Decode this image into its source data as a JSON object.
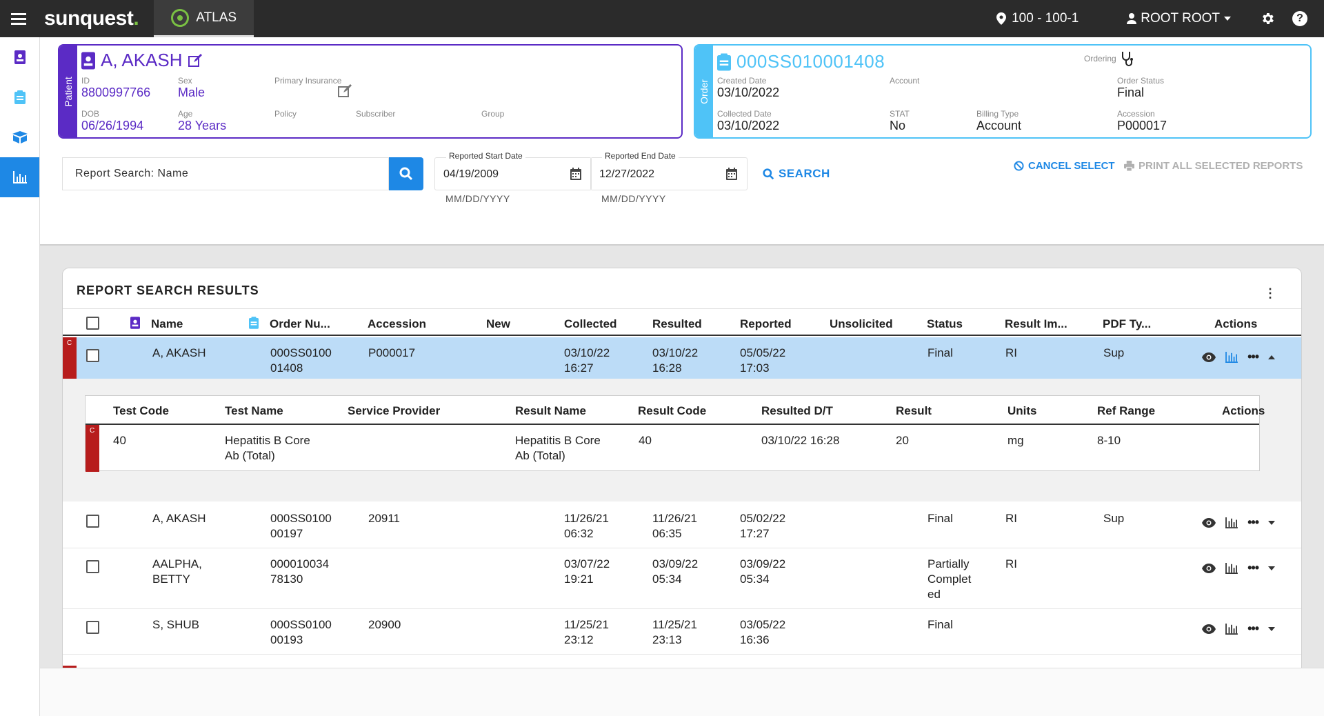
{
  "topbar": {
    "brand": "sunquest",
    "brand_dot": ".",
    "app_tab": "ATLAS",
    "location": "100 - 100-1",
    "user": "ROOT ROOT"
  },
  "patient": {
    "tab": "Patient",
    "name": "A, AKASH",
    "id_label": "ID",
    "id": "8800997766",
    "sex_label": "Sex",
    "sex": "Male",
    "insurance_label": "Primary Insurance",
    "dob_label": "DOB",
    "dob": "06/26/1994",
    "age_label": "Age",
    "age": "28 Years",
    "policy_label": "Policy",
    "subscriber_label": "Subscriber",
    "group_label": "Group"
  },
  "order": {
    "tab": "Order",
    "number": "000SS010001408",
    "ordering_label": "Ordering",
    "created_label": "Created Date",
    "created": "03/10/2022",
    "account_label": "Account",
    "status_label": "Order Status",
    "status": "Final",
    "collected_label": "Collected Date",
    "collected": "03/10/2022",
    "stat_label": "STAT",
    "stat": "No",
    "billing_label": "Billing Type",
    "billing": "Account",
    "accession_label": "Accession",
    "accession": "P000017"
  },
  "search": {
    "placeholder": "Report Search: Name",
    "start_label": "Reported Start Date",
    "start": "04/19/2009",
    "end_label": "Reported End Date",
    "end": "12/27/2022",
    "hint": "MM/DD/YYYY",
    "search_label": "SEARCH",
    "cancel_label": "CANCEL SELECT",
    "print_label": "PRINT ALL SELECTED REPORTS"
  },
  "results": {
    "title": "REPORT SEARCH RESULTS",
    "headers": [
      "Name",
      "Order Nu...",
      "Accession",
      "New",
      "Collected",
      "Resulted",
      "Reported",
      "Unsolicited",
      "Status",
      "Result Im...",
      "PDF Ty...",
      "Actions"
    ],
    "rows": [
      {
        "flag": "C",
        "name": "A, AKASH",
        "order": "000SS0100\n01408",
        "accession": "P000017",
        "collected": "03/10/22\n16:27",
        "resulted": "03/10/22\n16:28",
        "reported": "05/05/22\n17:03",
        "status": "Final",
        "result_im": "RI",
        "pdf": "Sup"
      },
      {
        "flag": "",
        "name": "A, AKASH",
        "order": "000SS0100\n00197",
        "accession": "20911",
        "collected": "11/26/21\n06:32",
        "resulted": "11/26/21\n06:35",
        "reported": "05/02/22\n17:27",
        "status": "Final",
        "result_im": "RI",
        "pdf": "Sup"
      },
      {
        "flag": "",
        "name": "AALPHA,\nBETTY",
        "order": "000010034\n78130",
        "accession": "",
        "collected": "03/07/22\n19:21",
        "resulted": "03/09/22\n05:34",
        "reported": "03/09/22\n05:34",
        "status": "Partially\nComplet\ned",
        "result_im": "RI",
        "pdf": ""
      },
      {
        "flag": "",
        "name": "S, SHUB",
        "order": "000SS0100\n00193",
        "accession": "20900",
        "collected": "11/25/21\n23:12",
        "resulted": "11/25/21\n23:13",
        "reported": "03/05/22\n16:36",
        "status": "Final",
        "result_im": "",
        "pdf": ""
      }
    ],
    "sub": {
      "headers": [
        "Test Code",
        "Test Name",
        "Service Provider",
        "Result Name",
        "Result Code",
        "Resulted D/T",
        "Result",
        "Units",
        "Ref Range",
        "Actions"
      ],
      "row": {
        "flag": "C",
        "test_code": "40",
        "test_name": "Hepatitis B Core\nAb (Total)",
        "result_name": "Hepatitis B Core\nAb (Total)",
        "result_code": "40",
        "resulted_dt": "03/10/22 16:28",
        "result": "20",
        "units": "mg",
        "ref_range": "8-10"
      }
    }
  },
  "colors": {
    "patient": "#5b2bc5",
    "order": "#4fc3f7",
    "accent": "#1e88e5",
    "flag": "#b71c1c",
    "selected_row": "#bcdcf7"
  }
}
